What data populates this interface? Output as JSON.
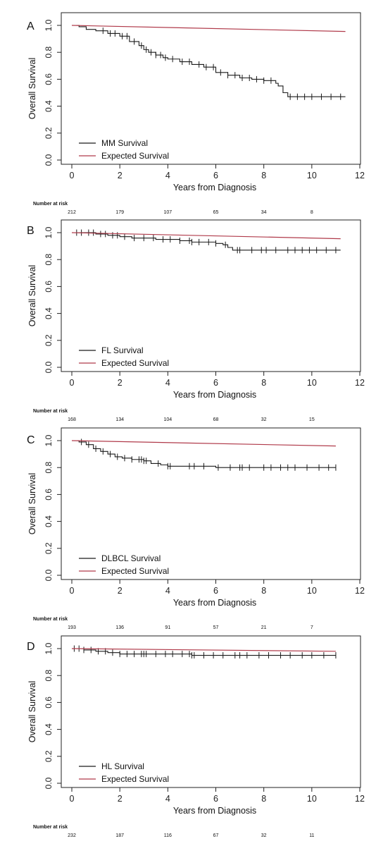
{
  "colors": {
    "km": "#1a1a1a",
    "expected": "#b03a4a",
    "axis": "#222222"
  },
  "chart_data": [
    {
      "type": "line",
      "panel_label": "A",
      "xlabel": "Years from Diagnosis",
      "ylabel": "Overall Survival",
      "xlim": [
        0,
        12
      ],
      "ylim": [
        0,
        1
      ],
      "xticks": [
        "0",
        "2",
        "4",
        "6",
        "8",
        "10",
        "12"
      ],
      "yticks": [
        "0.0",
        "0.2",
        "0.4",
        "0.6",
        "0.8",
        "1.0"
      ],
      "legend_position": "bottom-left",
      "series": [
        {
          "name": "MM Survival",
          "color_key": "km",
          "x": [
            0,
            0.3,
            0.6,
            1.0,
            1.5,
            2.0,
            2.4,
            2.8,
            3.0,
            3.2,
            3.5,
            3.8,
            4.0,
            4.5,
            5.0,
            5.5,
            6.0,
            6.5,
            7.0,
            7.5,
            8.0,
            8.5,
            8.6,
            8.8,
            9.0,
            9.5,
            10.0,
            10.5,
            11.4
          ],
          "y": [
            1.0,
            0.99,
            0.97,
            0.96,
            0.94,
            0.92,
            0.88,
            0.85,
            0.82,
            0.8,
            0.78,
            0.76,
            0.75,
            0.73,
            0.71,
            0.69,
            0.65,
            0.63,
            0.61,
            0.6,
            0.59,
            0.57,
            0.55,
            0.5,
            0.47,
            0.47,
            0.47,
            0.47,
            0.47
          ],
          "censor_x": [
            1.3,
            1.6,
            1.8,
            2.1,
            2.3,
            2.6,
            2.9,
            3.1,
            3.3,
            3.5,
            3.7,
            3.9,
            4.2,
            4.6,
            4.9,
            5.3,
            5.6,
            5.9,
            6.2,
            6.5,
            6.8,
            7.1,
            7.4,
            7.7,
            8.0,
            8.3,
            9.1,
            9.4,
            9.7,
            10.0,
            10.4,
            10.8,
            11.2
          ]
        },
        {
          "name": "Expected Survival",
          "color_key": "expected",
          "x": [
            0,
            11.4
          ],
          "y": [
            1.0,
            0.955
          ]
        }
      ],
      "risk_table": {
        "label": "Number at risk",
        "x": [
          0,
          2,
          4,
          6,
          8,
          10
        ],
        "values": [
          "212",
          "179",
          "107",
          "65",
          "34",
          "8"
        ]
      }
    },
    {
      "type": "line",
      "panel_label": "B",
      "xlabel": "Years from Diagnosis",
      "ylabel": "Overall Survival",
      "xlim": [
        0,
        12
      ],
      "ylim": [
        0,
        1
      ],
      "xticks": [
        "0",
        "2",
        "4",
        "6",
        "8",
        "10",
        "12"
      ],
      "yticks": [
        "0.0",
        "0.2",
        "0.4",
        "0.6",
        "0.8",
        "1.0"
      ],
      "legend_position": "bottom-left",
      "series": [
        {
          "name": "FL Survival",
          "color_key": "km",
          "x": [
            0,
            0.6,
            1.0,
            1.5,
            2.0,
            2.5,
            3.0,
            3.5,
            4.0,
            4.5,
            5.0,
            5.5,
            6.0,
            6.3,
            6.5,
            6.7,
            7.0,
            8.0,
            9.0,
            10.0,
            11.2
          ],
          "y": [
            1.0,
            1.0,
            0.99,
            0.98,
            0.97,
            0.96,
            0.96,
            0.95,
            0.95,
            0.94,
            0.93,
            0.93,
            0.92,
            0.91,
            0.89,
            0.87,
            0.87,
            0.87,
            0.87,
            0.87,
            0.87
          ],
          "censor_x": [
            0.2,
            0.4,
            0.7,
            0.9,
            1.2,
            1.4,
            1.7,
            1.9,
            2.2,
            2.6,
            3.0,
            3.4,
            3.8,
            4.1,
            4.5,
            4.9,
            5.0,
            5.3,
            5.7,
            6.0,
            6.4,
            6.9,
            7.0,
            7.5,
            7.9,
            8.1,
            8.5,
            9.0,
            9.3,
            9.6,
            9.9,
            10.2,
            10.6,
            11.0
          ]
        },
        {
          "name": "Expected Survival",
          "color_key": "expected",
          "x": [
            0,
            11.2
          ],
          "y": [
            1.0,
            0.955
          ]
        }
      ],
      "risk_table": {
        "label": "Number at risk",
        "x": [
          0,
          2,
          4,
          6,
          8,
          10
        ],
        "values": [
          "168",
          "134",
          "104",
          "68",
          "32",
          "15"
        ]
      }
    },
    {
      "type": "line",
      "panel_label": "C",
      "xlabel": "Years from Diagnosis",
      "ylabel": "Overall Survival",
      "xlim": [
        0,
        12
      ],
      "ylim": [
        0,
        1
      ],
      "xticks": [
        "0",
        "2",
        "4",
        "6",
        "8",
        "10",
        "12"
      ],
      "yticks": [
        "0.0",
        "0.2",
        "0.4",
        "0.6",
        "0.8",
        "1.0"
      ],
      "legend_position": "bottom-left",
      "series": [
        {
          "name": "DLBCL Survival",
          "color_key": "km",
          "x": [
            0,
            0.3,
            0.6,
            0.9,
            1.2,
            1.5,
            1.8,
            2.1,
            2.5,
            3.0,
            3.3,
            3.7,
            4.0,
            5.0,
            6.0,
            7.0,
            8.0,
            9.0,
            10.0,
            11.0
          ],
          "y": [
            1.0,
            0.99,
            0.97,
            0.94,
            0.92,
            0.9,
            0.88,
            0.87,
            0.86,
            0.85,
            0.83,
            0.82,
            0.81,
            0.81,
            0.8,
            0.8,
            0.8,
            0.8,
            0.8,
            0.8
          ],
          "censor_x": [
            0.4,
            0.7,
            1.0,
            1.3,
            1.6,
            1.9,
            2.2,
            2.5,
            2.8,
            2.9,
            3.0,
            3.1,
            3.6,
            4.0,
            4.1,
            4.9,
            5.1,
            5.5,
            6.1,
            6.6,
            7.0,
            7.1,
            7.4,
            8.0,
            8.3,
            8.7,
            9.0,
            9.3,
            9.8,
            10.3,
            10.7,
            11.0
          ]
        },
        {
          "name": "Expected Survival",
          "color_key": "expected",
          "x": [
            0,
            11.0
          ],
          "y": [
            1.0,
            0.96
          ]
        }
      ],
      "risk_table": {
        "label": "Number at risk",
        "x": [
          0,
          2,
          4,
          6,
          8,
          10
        ],
        "values": [
          "193",
          "136",
          "91",
          "57",
          "21",
          "7"
        ]
      }
    },
    {
      "type": "line",
      "panel_label": "D",
      "xlabel": "Years from Diagnosis",
      "ylabel": "Overall Survival",
      "xlim": [
        0,
        12
      ],
      "ylim": [
        0,
        1
      ],
      "xticks": [
        "0",
        "2",
        "4",
        "6",
        "8",
        "10",
        "12"
      ],
      "yticks": [
        "0.0",
        "0.2",
        "0.4",
        "0.6",
        "0.8",
        "1.0"
      ],
      "legend_position": "bottom-left",
      "series": [
        {
          "name": "HL Survival",
          "color_key": "km",
          "x": [
            0,
            0.5,
            1.0,
            1.5,
            2.0,
            3.0,
            5.0,
            7.0,
            9.0,
            11.0
          ],
          "y": [
            1.0,
            0.99,
            0.98,
            0.97,
            0.96,
            0.96,
            0.95,
            0.95,
            0.95,
            0.95
          ],
          "censor_x": [
            0.1,
            0.3,
            0.5,
            0.8,
            1.1,
            1.4,
            1.7,
            2.0,
            2.3,
            2.6,
            2.9,
            3.0,
            3.1,
            3.5,
            3.9,
            4.2,
            4.6,
            4.9,
            5.0,
            5.1,
            5.5,
            5.9,
            6.3,
            6.8,
            7.0,
            7.3,
            7.8,
            8.2,
            8.7,
            9.1,
            9.6,
            10.0,
            10.5,
            11.0
          ]
        },
        {
          "name": "Expected Survival",
          "color_key": "expected",
          "x": [
            0,
            11.0
          ],
          "y": [
            1.0,
            0.98
          ]
        }
      ],
      "risk_table": {
        "label": "Number at risk",
        "x": [
          0,
          2,
          4,
          6,
          8,
          10
        ],
        "values": [
          "232",
          "187",
          "116",
          "67",
          "32",
          "11"
        ]
      }
    }
  ]
}
